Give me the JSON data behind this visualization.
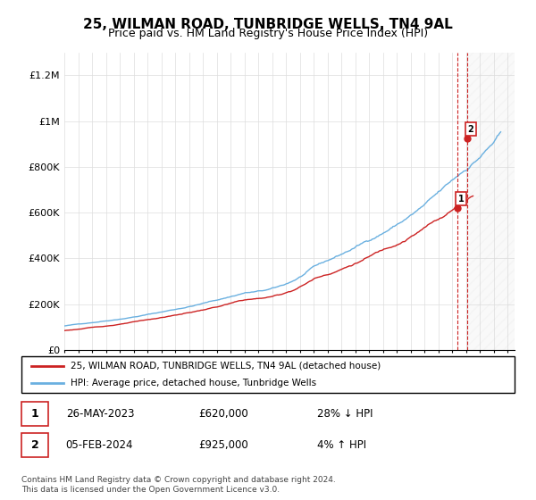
{
  "title": "25, WILMAN ROAD, TUNBRIDGE WELLS, TN4 9AL",
  "subtitle": "Price paid vs. HM Land Registry's House Price Index (HPI)",
  "title_fontsize": 11,
  "subtitle_fontsize": 9,
  "ylabel_ticks": [
    "£0",
    "£200K",
    "£400K",
    "£600K",
    "£800K",
    "£1M",
    "£1.2M"
  ],
  "ytick_values": [
    0,
    200000,
    400000,
    600000,
    800000,
    1000000,
    1200000
  ],
  "ylim": [
    0,
    1300000
  ],
  "xlim_start": 1995.0,
  "xlim_end": 2027.5,
  "hpi_color": "#6ab0e0",
  "price_color": "#cc2222",
  "sale1_date": 2023.4,
  "sale1_price": 620000,
  "sale2_date": 2024.09,
  "sale2_price": 925000,
  "legend_line1": "25, WILMAN ROAD, TUNBRIDGE WELLS, TN4 9AL (detached house)",
  "legend_line2": "HPI: Average price, detached house, Tunbridge Wells",
  "annotation1_date": "26-MAY-2023",
  "annotation1_price": "£620,000",
  "annotation1_hpi": "28% ↓ HPI",
  "annotation2_date": "05-FEB-2024",
  "annotation2_price": "£925,000",
  "annotation2_hpi": "4% ↑ HPI",
  "footer": "Contains HM Land Registry data © Crown copyright and database right 2024.\nThis data is licensed under the Open Government Licence v3.0.",
  "background_color": "#ffffff",
  "grid_color": "#dddddd"
}
